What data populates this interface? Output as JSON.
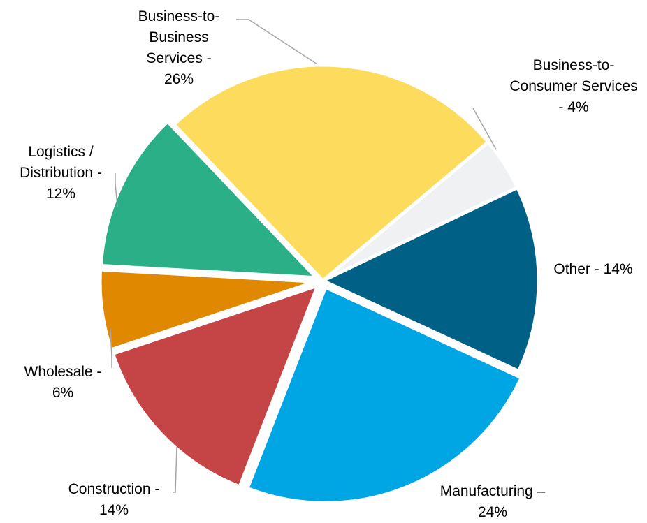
{
  "chart_data": {
    "type": "pie",
    "title": "",
    "start_angle_deg": 50,
    "direction": "clockwise",
    "series": [
      {
        "name": "",
        "slices": [
          {
            "label": "Business-to-Consumer Services - 4%",
            "value": 4,
            "color": "#F0F1F3"
          },
          {
            "label": "Other - 14%",
            "value": 14,
            "color": "#016085"
          },
          {
            "label": "Manufacturing – 24%",
            "value": 24,
            "color": "#00A5E3"
          },
          {
            "label": "Construction - 14%",
            "value": 14,
            "color": "#C54446"
          },
          {
            "label": "Wholesale - 6%",
            "value": 6,
            "color": "#E08900"
          },
          {
            "label": "Logistics / Distribution - 12%",
            "value": 12,
            "color": "#2BAF86"
          },
          {
            "label": "Business-to-Business Services - 26%",
            "value": 26,
            "color": "#FDDB5D"
          }
        ]
      }
    ],
    "label_lines": [
      [
        "Business-to-",
        "Consumer Services",
        "- 4%"
      ],
      [
        "Other - 14%"
      ],
      [
        "Manufacturing –",
        "24%"
      ],
      [
        "Construction -",
        "14%"
      ],
      [
        "Wholesale -",
        "6%"
      ],
      [
        "Logistics /",
        "Distribution -",
        "12%"
      ],
      [
        "Business-to-",
        "Business",
        "Services -",
        "26%"
      ]
    ],
    "leader_line_color": "#A6A6A6"
  }
}
